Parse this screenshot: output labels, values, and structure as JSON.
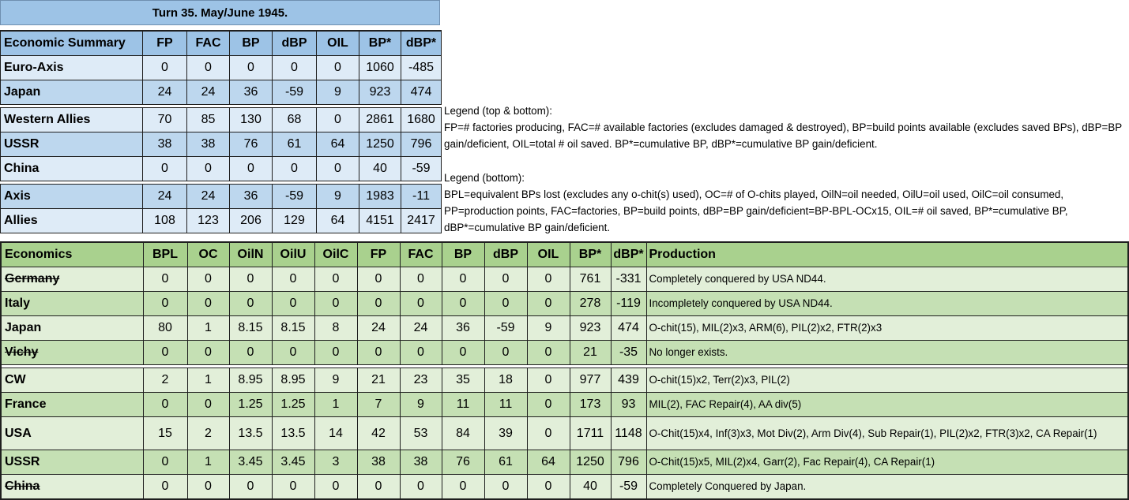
{
  "turn_title": "Turn 35.  May/June 1945.",
  "summary": {
    "headers": [
      "Economic Summary",
      "FP",
      "FAC",
      "BP",
      "dBP",
      "OIL",
      "BP*",
      "dBP*"
    ],
    "rows": [
      {
        "name": "Euro-Axis",
        "values": [
          "0",
          "0",
          "0",
          "0",
          "0",
          "1060",
          "-485"
        ]
      },
      {
        "name": "Japan",
        "values": [
          "24",
          "24",
          "36",
          "-59",
          "9",
          "923",
          "474"
        ]
      },
      {
        "name": "Western Allies",
        "values": [
          "70",
          "85",
          "130",
          "68",
          "0",
          "2861",
          "1680"
        ]
      },
      {
        "name": "USSR",
        "values": [
          "38",
          "38",
          "76",
          "61",
          "64",
          "1250",
          "796"
        ]
      },
      {
        "name": "China",
        "values": [
          "0",
          "0",
          "0",
          "0",
          "0",
          "40",
          "-59"
        ]
      },
      {
        "name": "Axis",
        "values": [
          "24",
          "24",
          "36",
          "-59",
          "9",
          "1983",
          "-11"
        ]
      },
      {
        "name": "Allies",
        "values": [
          "108",
          "123",
          "206",
          "129",
          "64",
          "4151",
          "2417"
        ]
      }
    ]
  },
  "legend": {
    "top_title": "Legend (top & bottom):",
    "top_text": "FP=# factories producing, FAC=# available factories (excludes damaged & destroyed), BP=build points available (excludes saved BPs), dBP=BP gain/deficient, OIL=total # oil saved. BP*=cumulative BP, dBP*=cumulative BP gain/deficient.",
    "bottom_title": "Legend (bottom):",
    "bottom_text": "BPL=equivalent BPs lost (excludes any o-chit(s) used), OC=# of O-chits played, OilN=oil needed, OilU=oil used, OilC=oil consumed, PP=production points, FAC=factories, BP=build points, dBP=BP gain/deficient=BP-BPL-OCx15, OIL=# oil saved, BP*=cumulative BP, dBP*=cumulative BP gain/deficient."
  },
  "economics": {
    "headers": [
      "Economics",
      "BPL",
      "OC",
      "OilN",
      "OilU",
      "OilC",
      "FP",
      "FAC",
      "BP",
      "dBP",
      "OIL",
      "BP*",
      "dBP*",
      "Production"
    ],
    "rows": [
      {
        "name": "Germany",
        "values": [
          "0",
          "0",
          "0",
          "0",
          "0",
          "0",
          "0",
          "0",
          "0",
          "0",
          "761",
          "-331"
        ],
        "production": "Completely conquered by USA ND44."
      },
      {
        "name": "Italy",
        "values": [
          "0",
          "0",
          "0",
          "0",
          "0",
          "0",
          "0",
          "0",
          "0",
          "0",
          "278",
          "-119"
        ],
        "production": "Incompletely conquered by USA ND44."
      },
      {
        "name": "Japan",
        "values": [
          "80",
          "1",
          "8.15",
          "8.15",
          "8",
          "24",
          "24",
          "36",
          "-59",
          "9",
          "923",
          "474"
        ],
        "production": "O-chit(15), MIL(2)x3, ARM(6), PIL(2)x2, FTR(2)x3"
      },
      {
        "name": "Vichy",
        "values": [
          "0",
          "0",
          "0",
          "0",
          "0",
          "0",
          "0",
          "0",
          "0",
          "0",
          "21",
          "-35"
        ],
        "production": "No longer exists."
      },
      {
        "name": "CW",
        "values": [
          "2",
          "1",
          "8.95",
          "8.95",
          "9",
          "21",
          "23",
          "35",
          "18",
          "0",
          "977",
          "439"
        ],
        "production": "O-chit(15)x2, Terr(2)x3, PIL(2)"
      },
      {
        "name": "France",
        "values": [
          "0",
          "0",
          "1.25",
          "1.25",
          "1",
          "7",
          "9",
          "11",
          "11",
          "0",
          "173",
          "93"
        ],
        "production": "MIL(2), FAC Repair(4), AA div(5)"
      },
      {
        "name": "USA",
        "values": [
          "15",
          "2",
          "13.5",
          "13.5",
          "14",
          "42",
          "53",
          "84",
          "39",
          "0",
          "1711",
          "1148"
        ],
        "production": "O-Chit(15)x4, Inf(3)x3, Mot Div(2), Arm Div(4), Sub Repair(1), PIL(2)x2, FTR(3)x2, CA Repair(1)"
      },
      {
        "name": "USSR",
        "values": [
          "0",
          "1",
          "3.45",
          "3.45",
          "3",
          "38",
          "38",
          "76",
          "61",
          "64",
          "1250",
          "796"
        ],
        "production": "O-Chit(15)x5, MIL(2)x4, Garr(2), Fac Repair(4), CA Repair(1)"
      },
      {
        "name": "China",
        "values": [
          "0",
          "0",
          "0",
          "0",
          "0",
          "0",
          "0",
          "0",
          "0",
          "0",
          "40",
          "-59"
        ],
        "production": "Completely Conquered by Japan."
      }
    ]
  }
}
